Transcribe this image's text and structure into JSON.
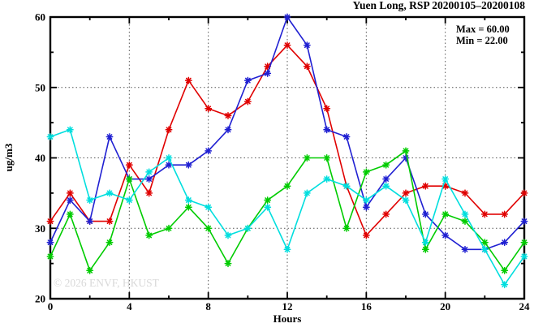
{
  "title": "Yuen Long, RSP 20200105–20200108",
  "legend": {
    "max_label": "Max = 60.00",
    "min_label": "Min = 22.00"
  },
  "watermark": "© 2026 ENVF, HKUST",
  "chart_data": {
    "type": "line",
    "title": "Yuen Long, RSP 20200105–20200108",
    "xlabel": "Hours",
    "ylabel": "ug/m3",
    "xlim": [
      0,
      24
    ],
    "ylim": [
      20,
      60
    ],
    "x_major_ticks": [
      0,
      4,
      8,
      12,
      16,
      20,
      24
    ],
    "x_minor_ticks": [
      2,
      6,
      10,
      14,
      18,
      22
    ],
    "y_major_ticks": [
      20,
      30,
      40,
      50,
      60
    ],
    "y_minor_ticks": [
      25,
      35,
      45,
      55
    ],
    "grid_x": [
      4,
      8,
      12,
      16,
      20
    ],
    "grid_y": [
      30,
      40,
      50
    ],
    "grid": true,
    "legend_position": "top-right-inside",
    "marker": "asterisk",
    "frame_color": "#000000",
    "grid_color": "#555555",
    "x": [
      0,
      1,
      2,
      3,
      4,
      5,
      6,
      7,
      8,
      9,
      10,
      11,
      12,
      13,
      14,
      15,
      16,
      17,
      18,
      19,
      20,
      21,
      22,
      23,
      24
    ],
    "series": [
      {
        "name": "series-red",
        "color": "#e00000",
        "values": [
          31,
          35,
          31,
          31,
          39,
          35,
          44,
          51,
          47,
          46,
          48,
          53,
          56,
          53,
          47,
          36,
          29,
          32,
          35,
          36,
          36,
          35,
          32,
          32,
          35
        ]
      },
      {
        "name": "series-blue",
        "color": "#2020d2",
        "values": [
          28,
          34,
          31,
          43,
          37,
          37,
          39,
          39,
          41,
          44,
          51,
          52,
          60,
          56,
          44,
          43,
          33,
          37,
          40,
          32,
          29,
          27,
          27,
          28,
          31
        ]
      },
      {
        "name": "series-green",
        "color": "#00cc00",
        "values": [
          26,
          32,
          24,
          28,
          37,
          29,
          30,
          33,
          30,
          25,
          30,
          34,
          36,
          40,
          40,
          30,
          38,
          39,
          41,
          27,
          32,
          31,
          28,
          24,
          28
        ]
      },
      {
        "name": "series-cyan",
        "color": "#00dede",
        "values": [
          43,
          44,
          34,
          35,
          34,
          38,
          40,
          34,
          33,
          29,
          30,
          33,
          27,
          35,
          37,
          36,
          34,
          36,
          34,
          28,
          37,
          32,
          27,
          22,
          26
        ]
      }
    ],
    "stats": {
      "max": 60.0,
      "min": 22.0
    }
  }
}
